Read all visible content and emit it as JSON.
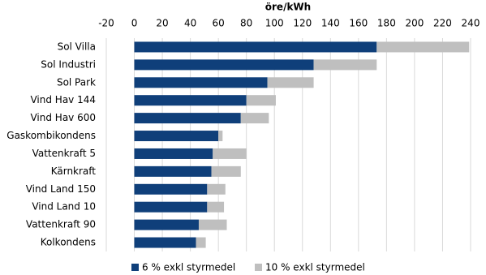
{
  "chart_data": {
    "type": "stacked-bar-horizontal",
    "x_axis_label": "öre/kWh",
    "categories": [
      "Sol Villa",
      "Sol Industri",
      "Sol Park",
      "Vind Hav 144",
      "Vind Hav 600",
      "Gaskombikondens",
      "Vattenkraft 5",
      "Kärnkraft",
      "Vind Land 150",
      "Vind Land 10",
      "Vattenkraft 90",
      "Kolkondens"
    ],
    "series": [
      {
        "name": "6 % exkl styrmedel",
        "color": "#0f3f7a",
        "values": [
          173,
          128,
          95,
          80,
          76,
          60,
          56,
          55,
          52,
          52,
          46,
          44
        ]
      },
      {
        "name": "10 % exkl styrmedel",
        "color": "#bfbfbf",
        "values": [
          66,
          45,
          33,
          21,
          20,
          3,
          24,
          21,
          13,
          12,
          20,
          7
        ]
      }
    ],
    "xlim": [
      -20,
      240
    ],
    "xticks": [
      -20,
      0,
      20,
      40,
      60,
      80,
      100,
      120,
      140,
      160,
      180,
      200,
      220,
      240
    ],
    "grid": true
  }
}
